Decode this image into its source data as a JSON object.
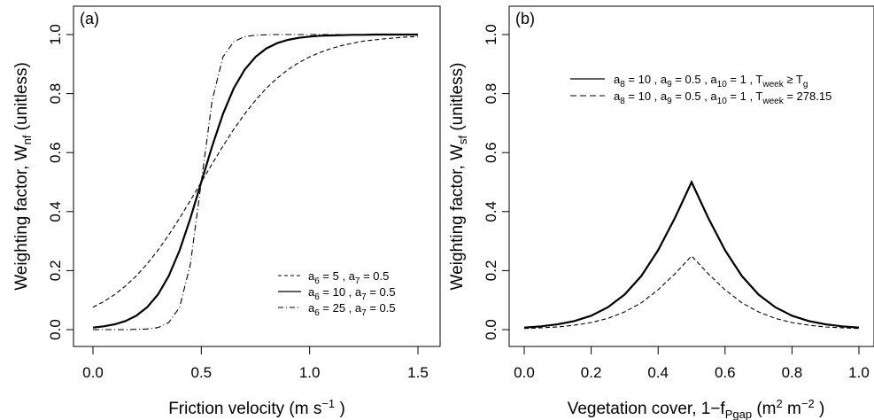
{
  "chart_data": [
    {
      "type": "line",
      "panel_label": "(a)",
      "xlabel": "Friction velocity (m s⁻¹ )",
      "ylabel": "Weighting factor, Wₙf (unitless)",
      "xlim": [
        0,
        1.5
      ],
      "ylim": [
        0,
        1
      ],
      "xticks": [
        "0.0",
        "0.5",
        "1.0",
        "1.5"
      ],
      "yticks": [
        "0.0",
        "0.2",
        "0.4",
        "0.6",
        "0.8",
        "1.0"
      ],
      "legend_position": "bottom-right",
      "x": [
        0.0,
        0.05,
        0.1,
        0.15,
        0.2,
        0.25,
        0.3,
        0.35,
        0.4,
        0.45,
        0.5,
        0.55,
        0.6,
        0.65,
        0.7,
        0.75,
        0.8,
        0.85,
        0.9,
        0.95,
        1.0,
        1.05,
        1.1,
        1.15,
        1.2,
        1.25,
        1.3,
        1.35,
        1.4,
        1.45,
        1.5
      ],
      "series": [
        {
          "name": "a₆ = 5 , a₇ = 0.5",
          "style": "dashed",
          "values": [
            0.076,
            0.095,
            0.119,
            0.148,
            0.182,
            0.223,
            0.269,
            0.321,
            0.378,
            0.438,
            0.5,
            0.562,
            0.622,
            0.679,
            0.731,
            0.777,
            0.818,
            0.852,
            0.881,
            0.905,
            0.924,
            0.94,
            0.953,
            0.963,
            0.971,
            0.978,
            0.982,
            0.986,
            0.989,
            0.992,
            0.993
          ]
        },
        {
          "name": "a₆ = 10 , a₇ = 0.5",
          "style": "solid",
          "values": [
            0.007,
            0.011,
            0.018,
            0.029,
            0.047,
            0.076,
            0.119,
            0.182,
            0.269,
            0.378,
            0.5,
            0.622,
            0.731,
            0.818,
            0.881,
            0.924,
            0.953,
            0.971,
            0.982,
            0.989,
            0.993,
            0.996,
            0.997,
            0.998,
            0.999,
            0.999,
            1.0,
            1.0,
            1.0,
            1.0,
            1.0
          ]
        },
        {
          "name": "a₆ = 25 , a₇ = 0.5",
          "style": "dashdot",
          "values": [
            0.0,
            0.0,
            0.0,
            0.0,
            0.001,
            0.002,
            0.007,
            0.024,
            0.076,
            0.223,
            0.5,
            0.777,
            0.924,
            0.976,
            0.993,
            0.998,
            0.999,
            1.0,
            1.0,
            1.0,
            1.0,
            1.0,
            1.0,
            1.0,
            1.0,
            1.0,
            1.0,
            1.0,
            1.0,
            1.0,
            1.0
          ]
        }
      ]
    },
    {
      "type": "line",
      "panel_label": "(b)",
      "xlabel": "Vegetation cover,  1−fₚₑₐₚ (m² m⁻² )",
      "ylabel": "Weighting factor, Wₛf (unitless)",
      "xlim": [
        0,
        1
      ],
      "ylim": [
        0,
        1
      ],
      "xticks": [
        "0.0",
        "0.2",
        "0.4",
        "0.6",
        "0.8",
        "1.0"
      ],
      "yticks": [
        "0.0",
        "0.2",
        "0.4",
        "0.6",
        "0.8",
        "1.0"
      ],
      "legend_position": "top-right",
      "x": [
        0.0,
        0.05,
        0.1,
        0.15,
        0.2,
        0.25,
        0.3,
        0.35,
        0.4,
        0.45,
        0.5,
        0.55,
        0.6,
        0.65,
        0.7,
        0.75,
        0.8,
        0.85,
        0.9,
        0.95,
        1.0
      ],
      "series": [
        {
          "name": "a₈ = 10 , a₉ = 0.5 , a₁₀ = 1 , Tₑₑk ≥ Tɡ",
          "style": "solid",
          "values": [
            0.007,
            0.011,
            0.018,
            0.029,
            0.047,
            0.076,
            0.119,
            0.182,
            0.269,
            0.378,
            0.5,
            0.378,
            0.269,
            0.182,
            0.119,
            0.076,
            0.047,
            0.029,
            0.018,
            0.011,
            0.007
          ]
        },
        {
          "name": "a₈ = 10 , a₉ = 0.5 , a₁₀ = 1 , Tₑₑk = 278.15",
          "style": "dashed",
          "values": [
            0.004,
            0.006,
            0.009,
            0.015,
            0.024,
            0.038,
            0.06,
            0.091,
            0.135,
            0.189,
            0.25,
            0.189,
            0.135,
            0.091,
            0.06,
            0.038,
            0.024,
            0.015,
            0.009,
            0.006,
            0.004
          ]
        }
      ]
    }
  ]
}
